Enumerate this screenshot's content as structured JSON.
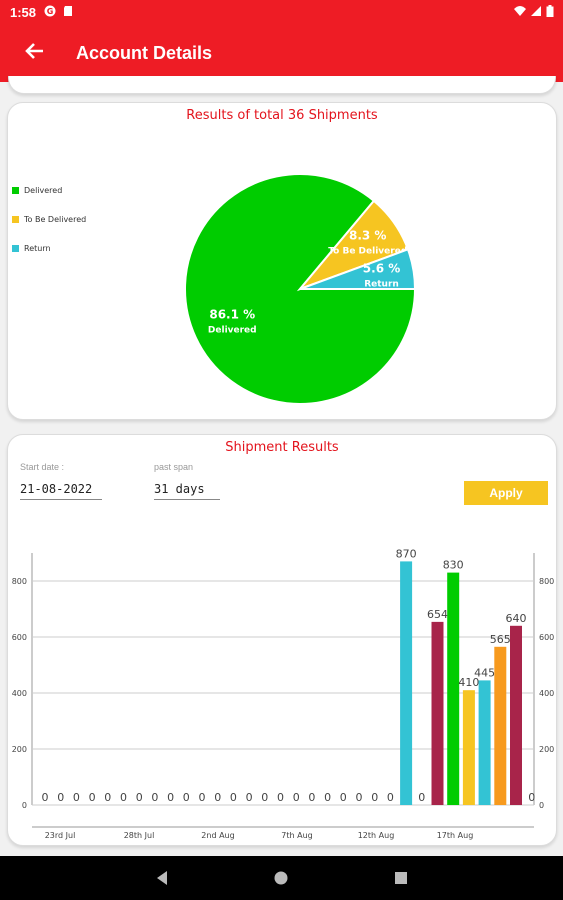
{
  "status_bar": {
    "time": "1:58"
  },
  "app_bar": {
    "title": "Account Details"
  },
  "pie_card": {
    "title": "Results of total 36 Shipments",
    "legend": [
      {
        "label": "Delivered",
        "color": "#00cc00"
      },
      {
        "label": "To Be Delivered",
        "color": "#f6c521"
      },
      {
        "label": "Return",
        "color": "#33c3d4"
      }
    ]
  },
  "shipment_card": {
    "title": "Shipment Results",
    "start_date_label": "Start date :",
    "start_date_value": "21-08-2022",
    "past_span_label": "past span",
    "past_span_value": "31 days",
    "apply_label": "Apply"
  },
  "chart_data": [
    {
      "type": "pie",
      "title": "Results of total 36 Shipments",
      "slices": [
        {
          "label": "Delivered",
          "percent": 86.1,
          "percent_label": "86.1 %",
          "color": "#00cc00"
        },
        {
          "label": "To Be Delivered",
          "percent": 8.3,
          "percent_label": "8.3 %",
          "color": "#f6c521"
        },
        {
          "label": "Return",
          "percent": 5.6,
          "percent_label": "5.6 %",
          "color": "#33c3d4"
        }
      ],
      "legend_position": "left"
    },
    {
      "type": "bar",
      "title": "Shipment Results",
      "x_tick_labels": [
        "23rd Jul",
        "28th Jul",
        "2nd Aug",
        "7th Aug",
        "12th Aug",
        "17th Aug"
      ],
      "y_ticks": [
        0,
        200,
        400,
        600,
        800
      ],
      "ylim": [
        0,
        900
      ],
      "grid": true,
      "values": [
        0,
        0,
        0,
        0,
        0,
        0,
        0,
        0,
        0,
        0,
        0,
        0,
        0,
        0,
        0,
        0,
        0,
        0,
        0,
        0,
        0,
        0,
        0,
        870,
        0,
        654,
        830,
        410,
        445,
        565,
        640,
        0
      ],
      "colors": [
        "#33c3d4",
        "#33c3d4",
        "#33c3d4",
        "#33c3d4",
        "#33c3d4",
        "#33c3d4",
        "#33c3d4",
        "#33c3d4",
        "#33c3d4",
        "#33c3d4",
        "#33c3d4",
        "#33c3d4",
        "#33c3d4",
        "#33c3d4",
        "#33c3d4",
        "#33c3d4",
        "#33c3d4",
        "#33c3d4",
        "#33c3d4",
        "#33c3d4",
        "#33c3d4",
        "#33c3d4",
        "#33c3d4",
        "#33c3d4",
        "#33c3d4",
        "#a8244a",
        "#00cc00",
        "#f6c521",
        "#33c3d4",
        "#f79a1e",
        "#a8244a",
        "#33c3d4"
      ]
    }
  ]
}
